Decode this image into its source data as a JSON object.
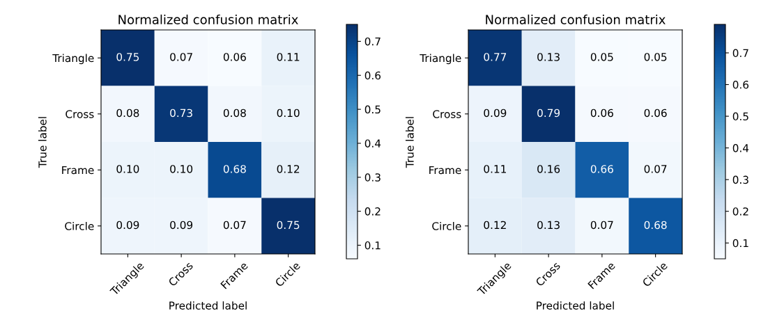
{
  "chart_data": [
    {
      "type": "heatmap",
      "title": "Normalized confusion matrix",
      "xlabel": "Predicted label",
      "ylabel": "True label",
      "categories": [
        "Triangle",
        "Cross",
        "Frame",
        "Circle"
      ],
      "y_categories": [
        "Triangle",
        "Cross",
        "Frame",
        "Circle"
      ],
      "cells": [
        [
          0.75,
          0.07,
          0.06,
          0.11
        ],
        [
          0.08,
          0.73,
          0.08,
          0.1
        ],
        [
          0.1,
          0.1,
          0.68,
          0.12
        ],
        [
          0.09,
          0.09,
          0.07,
          0.75
        ]
      ],
      "cell_labels": [
        [
          "0.75",
          "0.07",
          "0.06",
          "0.11"
        ],
        [
          "0.08",
          "0.73",
          "0.08",
          "0.10"
        ],
        [
          "0.10",
          "0.10",
          "0.68",
          "0.12"
        ],
        [
          "0.09",
          "0.09",
          "0.07",
          "0.75"
        ]
      ],
      "clim": [
        0.06,
        0.75
      ],
      "cticks": [
        0.1,
        0.2,
        0.3,
        0.4,
        0.5,
        0.6,
        0.7
      ]
    },
    {
      "type": "heatmap",
      "title": "Normalized confusion matrix",
      "xlabel": "Predicted label",
      "ylabel": "True label",
      "categories": [
        "Triangle",
        "Cross",
        "Frame",
        "Circle"
      ],
      "y_categories": [
        "Triangle",
        "Cross",
        "Frame",
        "Circle"
      ],
      "cells": [
        [
          0.77,
          0.13,
          0.05,
          0.05
        ],
        [
          0.09,
          0.79,
          0.06,
          0.06
        ],
        [
          0.11,
          0.16,
          0.66,
          0.07
        ],
        [
          0.12,
          0.13,
          0.07,
          0.68
        ]
      ],
      "cell_labels": [
        [
          "0.77",
          "0.13",
          "0.05",
          "0.05"
        ],
        [
          "0.09",
          "0.79",
          "0.06",
          "0.06"
        ],
        [
          "0.11",
          "0.16",
          "0.66",
          "0.07"
        ],
        [
          "0.12",
          "0.13",
          "0.07",
          "0.68"
        ]
      ],
      "clim": [
        0.05,
        0.79
      ],
      "cticks": [
        0.1,
        0.2,
        0.3,
        0.4,
        0.5,
        0.6,
        0.7
      ]
    }
  ]
}
